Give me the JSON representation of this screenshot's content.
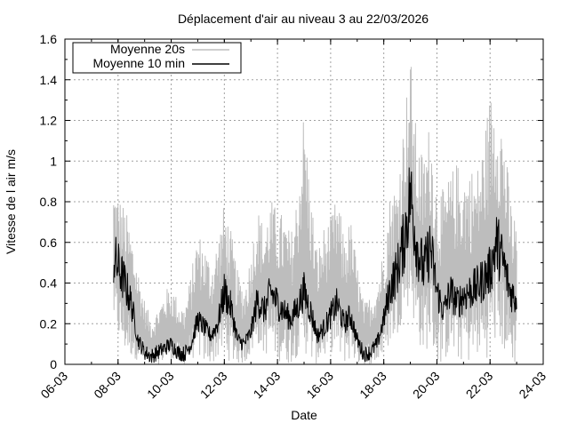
{
  "chart_data": {
    "type": "line",
    "title": "Déplacement d'air au niveau 3 au 22/03/2026",
    "xlabel": "Date",
    "ylabel": "Vitesse de l air m/s",
    "x_tick_labels": [
      "06-03",
      "08-03",
      "10-03",
      "12-03",
      "14-03",
      "16-03",
      "18-03",
      "20-03",
      "22-03",
      "24-03"
    ],
    "y_tick_labels": [
      "0",
      "0.2",
      "0.4",
      "0.6",
      "0.8",
      "1",
      "1.2",
      "1.4",
      "1.6"
    ],
    "xlim": [
      "06-03",
      "24-03"
    ],
    "ylim": [
      0,
      1.6
    ],
    "grid": true,
    "legend_position": "top-left",
    "series": [
      {
        "name": "Moyenne 20s",
        "color": "#bdbdbd",
        "x": [
          "07-03 20:00",
          "08-03 00:00",
          "08-03 06:00",
          "08-03 12:00",
          "08-03 18:00",
          "09-03 00:00",
          "09-03 06:00",
          "09-03 12:00",
          "09-03 18:00",
          "10-03 00:00",
          "10-03 06:00",
          "10-03 12:00",
          "10-03 18:00",
          "11-03 00:00",
          "11-03 06:00",
          "11-03 12:00",
          "11-03 18:00",
          "12-03 00:00",
          "12-03 06:00",
          "12-03 12:00",
          "12-03 18:00",
          "13-03 00:00",
          "13-03 06:00",
          "13-03 12:00",
          "13-03 18:00",
          "14-03 00:00",
          "14-03 06:00",
          "14-03 12:00",
          "14-03 18:00",
          "15-03 00:00",
          "15-03 06:00",
          "15-03 12:00",
          "15-03 18:00",
          "16-03 00:00",
          "16-03 06:00",
          "16-03 12:00",
          "16-03 18:00",
          "17-03 00:00",
          "17-03 06:00",
          "17-03 12:00",
          "17-03 18:00",
          "18-03 00:00",
          "18-03 06:00",
          "18-03 12:00",
          "18-03 18:00",
          "19-03 00:00",
          "19-03 06:00",
          "19-03 12:00",
          "19-03 18:00",
          "20-03 00:00",
          "20-03 06:00",
          "20-03 12:00",
          "20-03 18:00",
          "21-03 00:00",
          "21-03 06:00",
          "21-03 12:00",
          "21-03 18:00",
          "22-03 00:00",
          "22-03 06:00",
          "22-03 12:00",
          "22-03 18:00",
          "23-03 00:00"
        ],
        "y_max": [
          0.89,
          0.85,
          0.78,
          0.66,
          0.48,
          0.32,
          0.22,
          0.28,
          0.36,
          0.4,
          0.32,
          0.28,
          0.45,
          0.66,
          0.6,
          0.5,
          0.62,
          0.8,
          0.66,
          0.46,
          0.38,
          0.55,
          0.78,
          0.68,
          0.82,
          0.76,
          0.74,
          0.64,
          0.86,
          1.28,
          0.86,
          0.56,
          0.68,
          0.72,
          0.84,
          0.64,
          0.72,
          0.5,
          0.3,
          0.34,
          0.42,
          0.58,
          0.86,
          0.9,
          1.2,
          1.54,
          1.1,
          1.04,
          1.22,
          0.88,
          0.86,
          0.94,
          1.0,
          0.96,
          0.98,
          0.96,
          1.12,
          1.34,
          1.36,
          1.2,
          0.84,
          0.7
        ],
        "y_min": [
          0.2,
          0.12,
          0.05,
          0.03,
          0.02,
          0.0,
          0.0,
          0.0,
          0.01,
          0.02,
          0.0,
          0.0,
          0.02,
          0.04,
          0.0,
          0.0,
          0.02,
          0.06,
          0.0,
          0.0,
          0.0,
          0.04,
          0.1,
          0.04,
          0.06,
          0.02,
          0.0,
          0.0,
          0.04,
          0.06,
          0.0,
          0.0,
          0.02,
          0.06,
          0.04,
          0.0,
          0.02,
          0.0,
          0.0,
          0.0,
          0.0,
          0.04,
          0.1,
          0.14,
          0.24,
          0.3,
          0.12,
          0.04,
          0.1,
          0.0,
          0.0,
          0.06,
          0.0,
          0.02,
          0.0,
          0.04,
          0.0,
          0.06,
          0.1,
          0.06,
          0.0,
          0.0
        ]
      },
      {
        "name": "Moyenne 10 min",
        "color": "#000000",
        "x": [
          "07-03 20:00",
          "08-03 00:00",
          "08-03 06:00",
          "08-03 12:00",
          "08-03 18:00",
          "09-03 00:00",
          "09-03 06:00",
          "09-03 12:00",
          "09-03 18:00",
          "10-03 00:00",
          "10-03 06:00",
          "10-03 12:00",
          "10-03 18:00",
          "11-03 00:00",
          "11-03 06:00",
          "11-03 12:00",
          "11-03 18:00",
          "12-03 00:00",
          "12-03 06:00",
          "12-03 12:00",
          "12-03 18:00",
          "13-03 00:00",
          "13-03 06:00",
          "13-03 12:00",
          "13-03 18:00",
          "14-03 00:00",
          "14-03 06:00",
          "14-03 12:00",
          "14-03 18:00",
          "15-03 00:00",
          "15-03 06:00",
          "15-03 12:00",
          "15-03 18:00",
          "16-03 00:00",
          "16-03 06:00",
          "16-03 12:00",
          "16-03 18:00",
          "17-03 00:00",
          "17-03 06:00",
          "17-03 12:00",
          "17-03 18:00",
          "18-03 00:00",
          "18-03 06:00",
          "18-03 12:00",
          "18-03 18:00",
          "19-03 00:00",
          "19-03 06:00",
          "19-03 12:00",
          "19-03 18:00",
          "20-03 00:00",
          "20-03 06:00",
          "20-03 12:00",
          "20-03 18:00",
          "21-03 00:00",
          "21-03 06:00",
          "21-03 12:00",
          "21-03 18:00",
          "22-03 00:00",
          "22-03 06:00",
          "22-03 12:00",
          "22-03 18:00",
          "23-03 00:00"
        ],
        "y": [
          0.52,
          0.48,
          0.4,
          0.3,
          0.12,
          0.06,
          0.04,
          0.06,
          0.08,
          0.1,
          0.06,
          0.05,
          0.1,
          0.22,
          0.18,
          0.14,
          0.2,
          0.36,
          0.28,
          0.12,
          0.1,
          0.16,
          0.32,
          0.26,
          0.36,
          0.3,
          0.26,
          0.22,
          0.28,
          0.36,
          0.26,
          0.14,
          0.18,
          0.24,
          0.3,
          0.2,
          0.24,
          0.12,
          0.05,
          0.06,
          0.1,
          0.22,
          0.38,
          0.46,
          0.6,
          0.84,
          0.58,
          0.46,
          0.58,
          0.36,
          0.26,
          0.36,
          0.3,
          0.34,
          0.36,
          0.38,
          0.42,
          0.46,
          0.6,
          0.5,
          0.36,
          0.32
        ]
      }
    ]
  }
}
